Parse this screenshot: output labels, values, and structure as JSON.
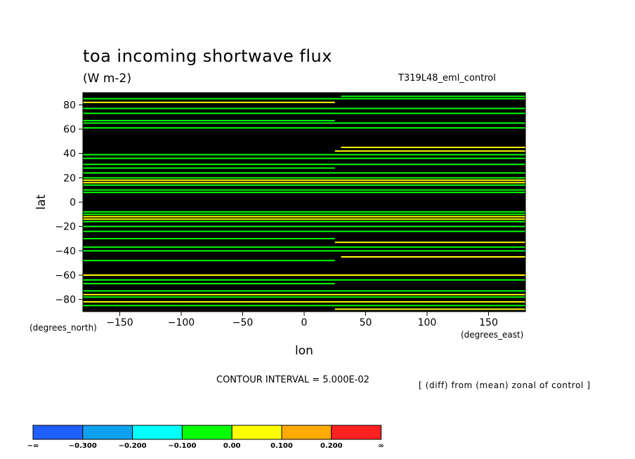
{
  "chart_data": {
    "type": "heatmap",
    "title": "toa incoming shortwave flux",
    "units": "(W m-2)",
    "run_label": "T319L48_eml_control",
    "xlabel": "lon",
    "ylabel": "lat",
    "x_units": "(degrees_east)",
    "y_units": "(degrees_north)",
    "xlim": [
      -180,
      180
    ],
    "ylim": [
      -90,
      90
    ],
    "x_ticks": [
      "-150",
      "-100",
      "-50",
      "0",
      "50",
      "100",
      "150"
    ],
    "y_ticks": [
      "80",
      "60",
      "40",
      "20",
      "0",
      "-20",
      "-40",
      "-60",
      "-80"
    ],
    "contour_interval": "CONTOUR INTERVAL = 5.000E-02",
    "note": "[ (diff) from (mean) zonal of control ]",
    "background_color": "#000000",
    "colorbar": {
      "colors": [
        "#1f5fff",
        "#10a0f0",
        "#00ffff",
        "#00ff00",
        "#ffff00",
        "#ffaa00",
        "#ff2020"
      ],
      "labels": [
        "-∞",
        "-0.300",
        "-0.200",
        "-0.100",
        "0.00",
        "0.100",
        "0.200",
        "∞"
      ]
    },
    "zonal_bands": [
      {
        "lat": 87,
        "color": "#00ff00",
        "lon": [
          30,
          180
        ]
      },
      {
        "lat": 85,
        "color": "#00ff00",
        "lon": [
          -180,
          180
        ]
      },
      {
        "lat": 82,
        "color": "#ffff00",
        "lon": [
          -180,
          25
        ]
      },
      {
        "lat": 77,
        "color": "#00ff00",
        "lon": [
          -180,
          180
        ]
      },
      {
        "lat": 73,
        "color": "#00ff00",
        "lon": [
          -180,
          180
        ]
      },
      {
        "lat": 67,
        "color": "#00ff00",
        "lon": [
          -180,
          25
        ]
      },
      {
        "lat": 65,
        "color": "#00ff00",
        "lon": [
          -180,
          180
        ]
      },
      {
        "lat": 61,
        "color": "#00ff00",
        "lon": [
          -180,
          180
        ]
      },
      {
        "lat": 45,
        "color": "#ffff00",
        "lon": [
          30,
          180
        ]
      },
      {
        "lat": 42,
        "color": "#ffff00",
        "lon": [
          25,
          180
        ]
      },
      {
        "lat": 39,
        "color": "#00ff00",
        "lon": [
          -180,
          180
        ]
      },
      {
        "lat": 36,
        "color": "#00ff00",
        "lon": [
          -180,
          180
        ]
      },
      {
        "lat": 31,
        "color": "#00ff00",
        "lon": [
          -180,
          180
        ]
      },
      {
        "lat": 28,
        "color": "#00ff00",
        "lon": [
          -180,
          25
        ]
      },
      {
        "lat": 24,
        "color": "#00ff00",
        "lon": [
          -180,
          180
        ]
      },
      {
        "lat": 20,
        "color": "#00ff00",
        "lon": [
          -180,
          180
        ]
      },
      {
        "lat": 18,
        "color": "#ffff00",
        "lon": [
          -180,
          180
        ]
      },
      {
        "lat": 16,
        "color": "#ffff00",
        "lon": [
          -180,
          180
        ]
      },
      {
        "lat": 14,
        "color": "#00ff00",
        "lon": [
          -180,
          180
        ]
      },
      {
        "lat": 10,
        "color": "#00ff00",
        "lon": [
          -180,
          180
        ]
      },
      {
        "lat": 8,
        "color": "#00ff00",
        "lon": [
          -180,
          180
        ]
      },
      {
        "lat": -8,
        "color": "#00ff00",
        "lon": [
          -180,
          180
        ]
      },
      {
        "lat": -10,
        "color": "#00ff00",
        "lon": [
          -180,
          180
        ]
      },
      {
        "lat": -12,
        "color": "#ffff00",
        "lon": [
          -180,
          180
        ]
      },
      {
        "lat": -14,
        "color": "#ffff00",
        "lon": [
          -180,
          180
        ]
      },
      {
        "lat": -16,
        "color": "#00ff00",
        "lon": [
          -180,
          180
        ]
      },
      {
        "lat": -20,
        "color": "#00ff00",
        "lon": [
          -180,
          180
        ]
      },
      {
        "lat": -24,
        "color": "#00ff00",
        "lon": [
          -180,
          180
        ]
      },
      {
        "lat": -30,
        "color": "#00ff00",
        "lon": [
          -180,
          25
        ]
      },
      {
        "lat": -33,
        "color": "#ffff00",
        "lon": [
          25,
          180
        ]
      },
      {
        "lat": -37,
        "color": "#00ff00",
        "lon": [
          -180,
          180
        ]
      },
      {
        "lat": -40,
        "color": "#00ff00",
        "lon": [
          -180,
          180
        ]
      },
      {
        "lat": -45,
        "color": "#ffff00",
        "lon": [
          30,
          180
        ]
      },
      {
        "lat": -48,
        "color": "#00ff00",
        "lon": [
          -180,
          25
        ]
      },
      {
        "lat": -60,
        "color": "#ffff00",
        "lon": [
          -180,
          180
        ]
      },
      {
        "lat": -64,
        "color": "#00ff00",
        "lon": [
          -180,
          180
        ]
      },
      {
        "lat": -67,
        "color": "#00ff00",
        "lon": [
          -180,
          25
        ]
      },
      {
        "lat": -73,
        "color": "#00ff00",
        "lon": [
          -180,
          180
        ]
      },
      {
        "lat": -76,
        "color": "#ffff00",
        "lon": [
          -180,
          180
        ]
      },
      {
        "lat": -78,
        "color": "#00ff00",
        "lon": [
          -180,
          180
        ]
      },
      {
        "lat": -82,
        "color": "#ffff00",
        "lon": [
          -180,
          180
        ]
      },
      {
        "lat": -85,
        "color": "#00ff00",
        "lon": [
          -180,
          180
        ]
      },
      {
        "lat": -88,
        "color": "#ffff00",
        "lon": [
          25,
          180
        ]
      }
    ]
  }
}
